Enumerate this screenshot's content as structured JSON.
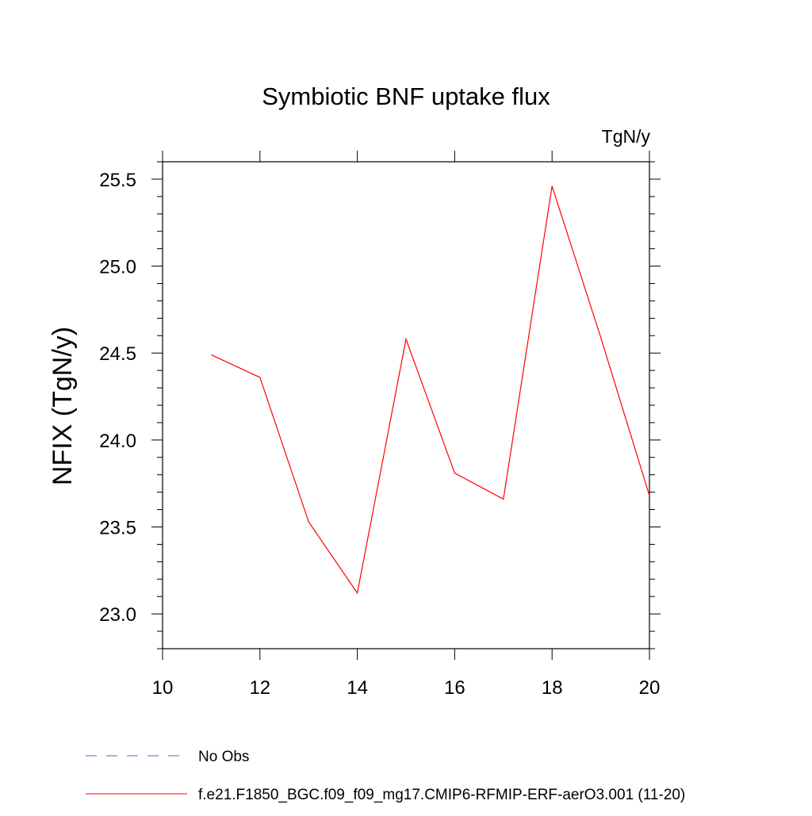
{
  "chart_data": {
    "type": "line",
    "title": "Symbiotic BNF uptake flux",
    "units_label": "TgN/y",
    "xlabel": "",
    "ylabel": "NFIX  (TgN/y)",
    "xlim": [
      10,
      20
    ],
    "ylim": [
      22.8,
      25.6
    ],
    "x_ticks": [
      10,
      12,
      14,
      16,
      18,
      20
    ],
    "x_tick_labels": [
      "10",
      "12",
      "14",
      "16",
      "18",
      "20"
    ],
    "y_ticks": [
      23.0,
      23.5,
      24.0,
      24.5,
      25.0,
      25.5
    ],
    "y_tick_labels": [
      "23.0",
      "23.5",
      "24.0",
      "24.5",
      "25.0",
      "25.5"
    ],
    "grid": false,
    "legend_position": "bottom",
    "series": [
      {
        "name": "f.e21.F1850_BGC.f09_f09_mg17.CMIP6-RFMIP-ERF-aerO3.001 (11-20)",
        "color": "#ff0000",
        "line_style": "solid",
        "x": [
          11,
          12,
          13,
          14,
          15,
          16,
          17,
          18,
          19,
          20
        ],
        "values": [
          24.49,
          24.36,
          23.53,
          23.12,
          24.58,
          23.81,
          23.66,
          25.46,
          24.59,
          23.68
        ]
      }
    ],
    "legend": [
      {
        "label": "No Obs",
        "color": "#6a5acd",
        "line_style": "dashed"
      },
      {
        "label": "f.e21.F1850_BGC.f09_f09_mg17.CMIP6-RFMIP-ERF-aerO3.001 (11-20)",
        "color": "#ff0000",
        "line_style": "solid"
      }
    ]
  }
}
